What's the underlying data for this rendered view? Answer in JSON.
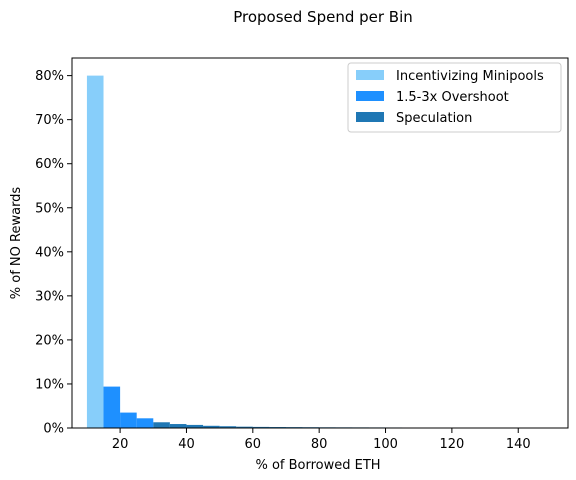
{
  "chart_data": {
    "type": "bar",
    "title": "Proposed Spend per Bin",
    "xlabel": "% of Borrowed ETH",
    "ylabel": "% of NO Rewards",
    "xlim": [
      5.5,
      155
    ],
    "ylim": [
      0,
      0.84
    ],
    "xticks": [
      20,
      40,
      60,
      80,
      100,
      120,
      140
    ],
    "yticks": [
      0,
      0.1,
      0.2,
      0.3,
      0.4,
      0.5,
      0.6,
      0.7,
      0.8
    ],
    "ytick_format": "percent",
    "legend_position": "top-right",
    "grid": false,
    "series": [
      {
        "name": "Incentivizing Minipools",
        "color": "#87cefa",
        "bins": [
          {
            "x0": 10,
            "x1": 15,
            "value": 0.8
          }
        ]
      },
      {
        "name": "1.5-3x Overshoot",
        "color": "#1e90ff",
        "bins": [
          {
            "x0": 15,
            "x1": 20,
            "value": 0.094
          },
          {
            "x0": 20,
            "x1": 25,
            "value": 0.035
          },
          {
            "x0": 25,
            "x1": 30,
            "value": 0.022
          }
        ]
      },
      {
        "name": "Speculation",
        "color": "#1f77b4",
        "bins": [
          {
            "x0": 30,
            "x1": 35,
            "value": 0.013
          },
          {
            "x0": 35,
            "x1": 40,
            "value": 0.009
          },
          {
            "x0": 40,
            "x1": 45,
            "value": 0.007
          },
          {
            "x0": 45,
            "x1": 50,
            "value": 0.005
          },
          {
            "x0": 50,
            "x1": 55,
            "value": 0.004
          },
          {
            "x0": 55,
            "x1": 60,
            "value": 0.003
          },
          {
            "x0": 60,
            "x1": 65,
            "value": 0.0025
          },
          {
            "x0": 65,
            "x1": 70,
            "value": 0.0022
          },
          {
            "x0": 70,
            "x1": 75,
            "value": 0.002
          },
          {
            "x0": 75,
            "x1": 80,
            "value": 0.0018
          },
          {
            "x0": 80,
            "x1": 85,
            "value": 0.0016
          },
          {
            "x0": 85,
            "x1": 90,
            "value": 0.0015
          },
          {
            "x0": 90,
            "x1": 95,
            "value": 0.0014
          },
          {
            "x0": 95,
            "x1": 100,
            "value": 0.0013
          },
          {
            "x0": 100,
            "x1": 105,
            "value": 0.0012
          },
          {
            "x0": 105,
            "x1": 110,
            "value": 0.0011
          },
          {
            "x0": 110,
            "x1": 115,
            "value": 0.001
          },
          {
            "x0": 115,
            "x1": 120,
            "value": 0.001
          }
        ]
      }
    ]
  }
}
